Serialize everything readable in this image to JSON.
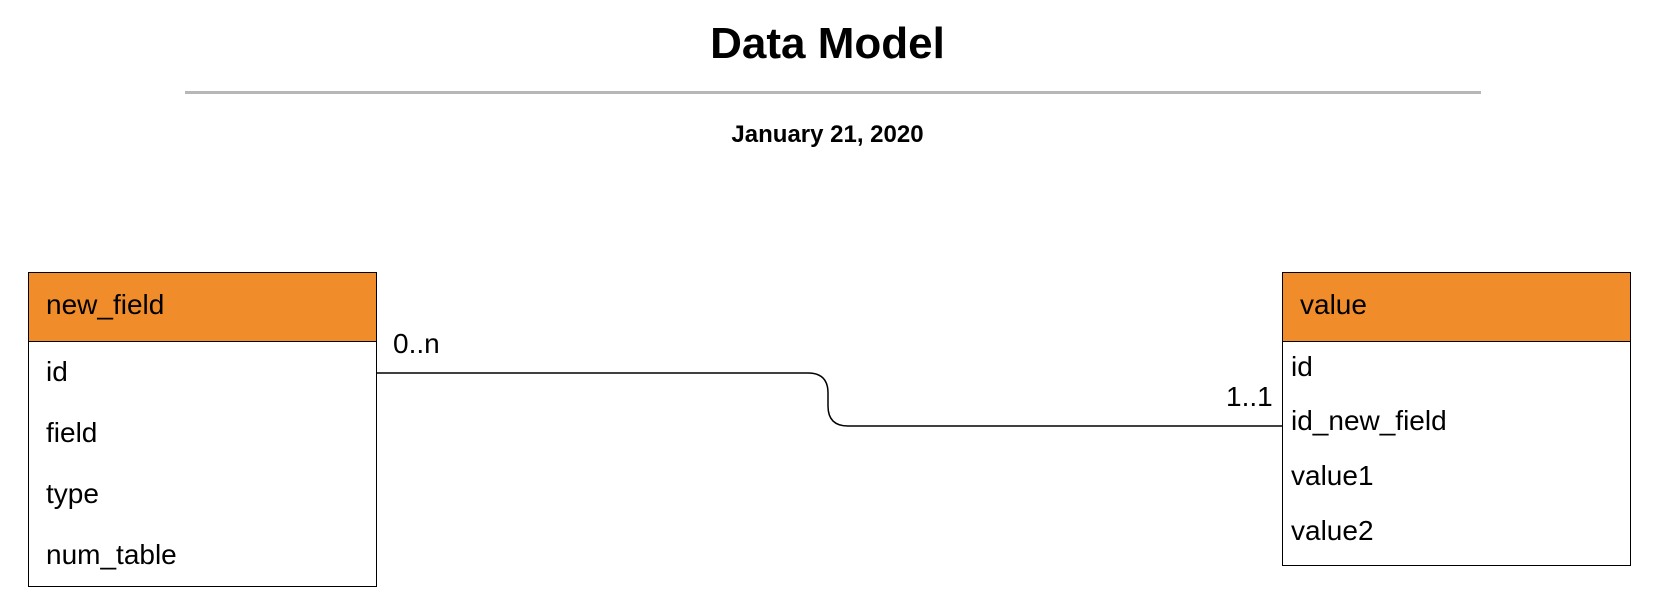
{
  "title": "Data Model",
  "date": "January 21, 2020",
  "entities": [
    {
      "name": "new_field",
      "header_color": "#f18c2b",
      "fields": [
        "id",
        "field",
        "type",
        "num_table"
      ]
    },
    {
      "name": "value",
      "header_color": "#f18c2b",
      "fields": [
        "id",
        "id_new_field",
        "value1",
        "value2"
      ]
    }
  ],
  "relationship": {
    "from_entity": "new_field",
    "from_field": "id",
    "from_cardinality": "0..n",
    "to_entity": "value",
    "to_field": "id_new_field",
    "to_cardinality": "1..1"
  }
}
